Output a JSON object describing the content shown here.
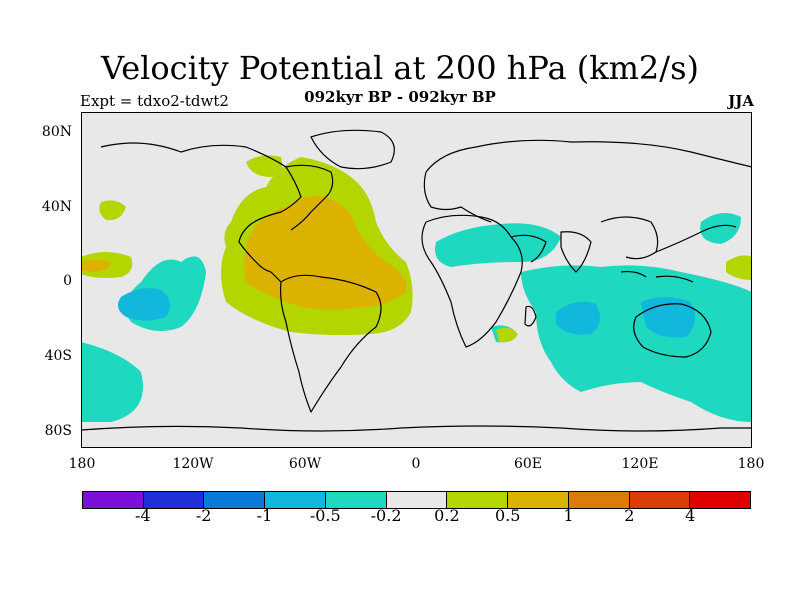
{
  "title": "Velocity Potential at 200 hPa (km2/s)",
  "subtitle": "092kyr BP - 092kyr BP",
  "left_label": "Expt = tdxo2-tdwt2",
  "right_label": "JJA",
  "lat_labels": [
    "80N",
    "40N",
    "0",
    "40S",
    "80S"
  ],
  "lon_labels": [
    "180",
    "120W",
    "60W",
    "0",
    "60E",
    "120E",
    "180"
  ],
  "colorbar": {
    "colors": [
      "#7b10d8",
      "#2030d8",
      "#0a7ad8",
      "#12b8dc",
      "#1ed8c0",
      "#e8e8e8",
      "#b4d600",
      "#dcb200",
      "#dc7c08",
      "#dc3c08",
      "#e00000"
    ],
    "labels": [
      "-4",
      "-2",
      "-1",
      "-0.5",
      "-0.2",
      "0.2",
      "0.5",
      "1",
      "2",
      "4"
    ]
  },
  "map": {
    "ocean_color": "#e8e8e8",
    "coast_color": "#000000"
  }
}
